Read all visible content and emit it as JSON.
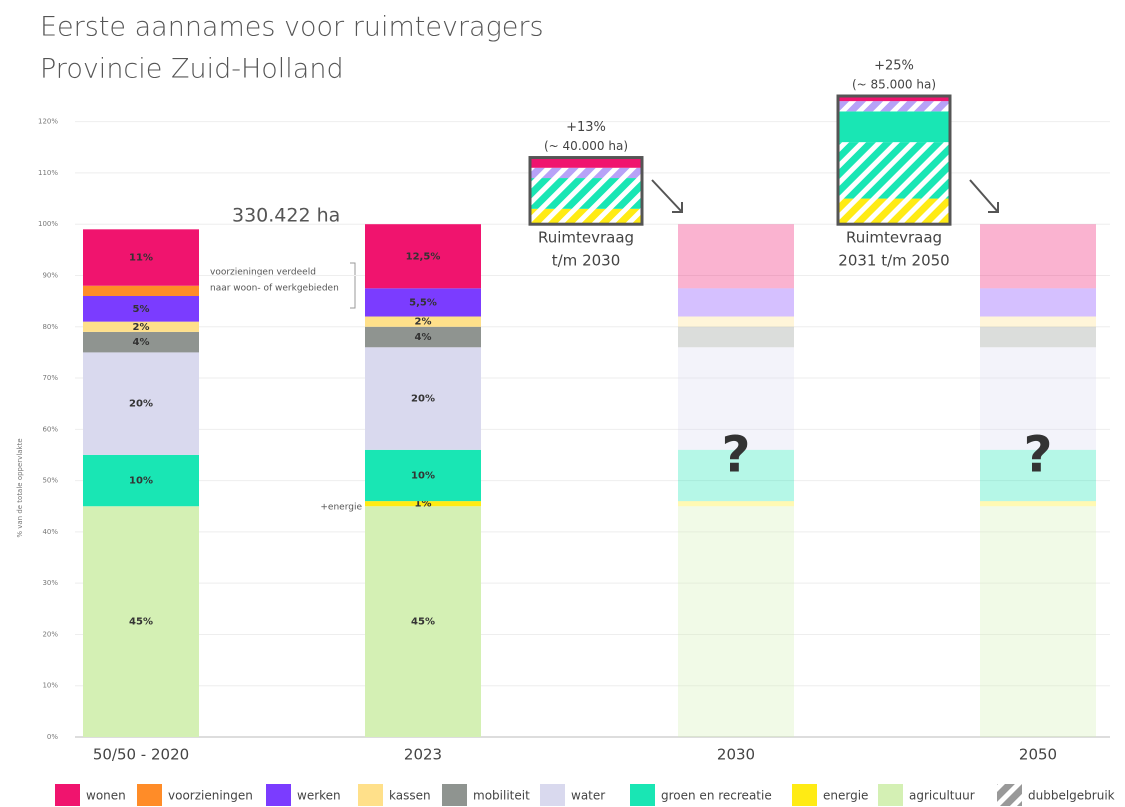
{
  "chart_data": {
    "type": "bar",
    "stacked": true,
    "title": "Eerste aannames voor ruimtevragers",
    "subtitle": "Provincie Zuid-Holland",
    "ylabel": "% van de totale oppervlakte",
    "categories": [
      "50/50 - 2020",
      "2023",
      "2030",
      "2050"
    ],
    "ylim": [
      0,
      125
    ],
    "yticks": [
      {
        "value": 0,
        "label": "0%"
      },
      {
        "value": 10,
        "label": "10%"
      },
      {
        "value": 20,
        "label": "20%"
      },
      {
        "value": 30,
        "label": "30%"
      },
      {
        "value": 40,
        "label": "40%"
      },
      {
        "value": 50,
        "label": "50%"
      },
      {
        "value": 60,
        "label": "60%"
      },
      {
        "value": 70,
        "label": "70%"
      },
      {
        "value": 80,
        "label": "80%"
      },
      {
        "value": 90,
        "label": "90%"
      },
      {
        "value": 100,
        "label": "100%"
      },
      {
        "value": 110,
        "label": "110%"
      },
      {
        "value": 120,
        "label": "120%"
      }
    ],
    "grid": true,
    "series": [
      {
        "name": "wonen",
        "color": "#f0146e",
        "values": [
          11,
          12.5,
          12.5,
          12.5
        ],
        "value_labels": [
          "11%",
          "12,5%",
          null,
          null
        ]
      },
      {
        "name": "voorzieningen",
        "color": "#ff8c28",
        "values": [
          2,
          null,
          null,
          null
        ]
      },
      {
        "name": "werken",
        "color": "#7b3cff",
        "values": [
          5,
          5.5,
          5.5,
          5.5
        ],
        "value_labels": [
          "5%",
          "5,5%",
          null,
          null
        ]
      },
      {
        "name": "kassen",
        "color": "#ffe08a",
        "values": [
          2,
          2,
          2,
          2
        ],
        "value_labels": [
          "2%",
          "2%",
          null,
          null
        ]
      },
      {
        "name": "mobiliteit",
        "color": "#8f9490",
        "values": [
          4,
          4,
          4,
          4
        ],
        "value_labels": [
          "4%",
          "4%",
          null,
          null
        ]
      },
      {
        "name": "water",
        "color": "#d9d9ee",
        "values": [
          20,
          20,
          20,
          20
        ],
        "value_labels": [
          "20%",
          "20%",
          null,
          null
        ]
      },
      {
        "name": "groen en recreatie",
        "color": "#19e6b4",
        "values": [
          10,
          10,
          10,
          10
        ],
        "value_labels": [
          "10%",
          "10%",
          null,
          null
        ]
      },
      {
        "name": "energie",
        "color": "#ffeb14",
        "values": [
          null,
          1,
          1,
          1
        ],
        "value_labels": [
          null,
          "1%",
          null,
          null
        ]
      },
      {
        "name": "agricultuur",
        "color": "#d4f0b4",
        "values": [
          45,
          45,
          45,
          45
        ],
        "value_labels": [
          "45%",
          "45%",
          null,
          null
        ]
      }
    ],
    "hatch_legend": "dubbelgebruik",
    "hatch_color": "#999999",
    "demand": [
      {
        "label": "+13%",
        "note": "(~ 40.000 ha)",
        "caption": [
          "Ruimtevraag",
          "t/m 2030"
        ],
        "base": 100,
        "segments": [
          {
            "value": 3,
            "color": "#ffeb14",
            "hatched": true
          },
          {
            "value": 6,
            "color": "#19e6b4",
            "hatched": true
          },
          {
            "value": 2,
            "color": "#b7a2f7",
            "hatched": true
          },
          {
            "value": 2,
            "color": "#f0146e",
            "hatched": false
          }
        ]
      },
      {
        "label": "+25%",
        "note": "(~ 85.000 ha)",
        "caption": [
          "Ruimtevraag",
          "2031 t/m 2050"
        ],
        "base": 100,
        "segments": [
          {
            "value": 5,
            "color": "#ffeb14",
            "hatched": true
          },
          {
            "value": 11,
            "color": "#19e6b4",
            "hatched": true
          },
          {
            "value": 6,
            "color": "#19e6b4",
            "hatched": false
          },
          {
            "value": 2,
            "color": "#b7a2f7",
            "hatched": true
          },
          {
            "value": 1,
            "color": "#f0146e",
            "hatched": false
          }
        ]
      }
    ],
    "annotations": {
      "total": "330.422 ha",
      "voorzieningen": [
        "voorzieningen verdeeld",
        "naar woon- of werkgebieden"
      ],
      "energie": "+energie",
      "unknown": "?"
    }
  }
}
